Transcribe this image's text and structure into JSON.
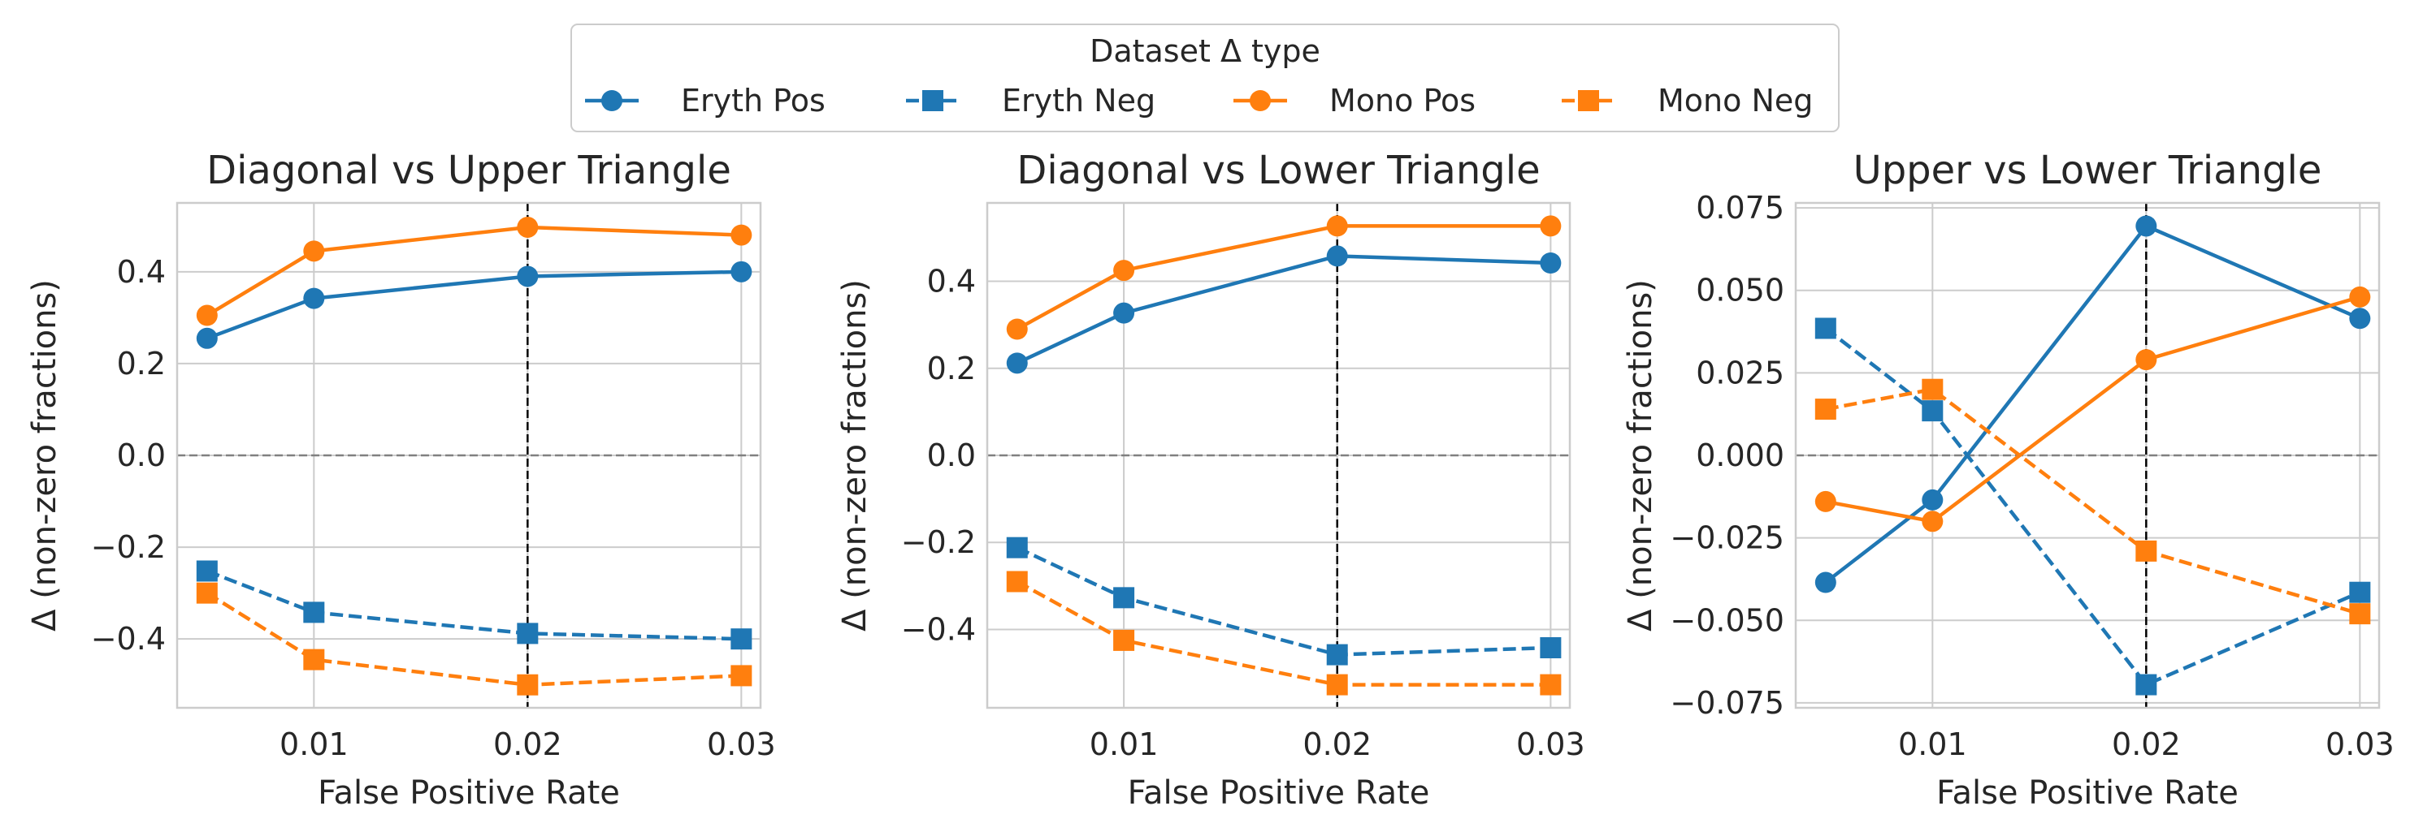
{
  "legend": {
    "title": "Dataset Δ type",
    "placement": "top-center"
  },
  "chart_data": [
    {
      "type": "line",
      "title": "Diagonal vs Upper Triangle",
      "xlabel": "False Positive Rate",
      "ylabel": "Δ (non-zero fractions)",
      "x": [
        0.005,
        0.01,
        0.02,
        0.03
      ],
      "xlim": [
        0.0036,
        0.0309
      ],
      "ylim": [
        -0.55,
        0.55
      ],
      "xticks": [
        0.01,
        0.02,
        0.03
      ],
      "xtick_labels": [
        "0.01",
        "0.02",
        "0.03"
      ],
      "yticks": [
        0.4,
        0.2,
        0.0,
        -0.2,
        -0.4
      ],
      "ytick_labels": [
        "0.4",
        "0.2",
        "0.0",
        "−0.2",
        "−0.4"
      ],
      "reference_vline": 0.02,
      "reference_hline": 0.0,
      "grid": true,
      "series": [
        {
          "name": "Eryth Pos",
          "values": [
            0.255,
            0.342,
            0.39,
            0.4
          ],
          "color": "#1f77b4",
          "marker": "circle",
          "linestyle": "solid"
        },
        {
          "name": "Eryth Neg",
          "values": [
            -0.252,
            -0.342,
            -0.388,
            -0.4
          ],
          "color": "#1f77b4",
          "marker": "square",
          "linestyle": "dashed"
        },
        {
          "name": "Mono Pos",
          "values": [
            0.305,
            0.445,
            0.497,
            0.48
          ],
          "color": "#ff7f0e",
          "marker": "circle",
          "linestyle": "solid"
        },
        {
          "name": "Mono Neg",
          "values": [
            -0.3,
            -0.445,
            -0.5,
            -0.48
          ],
          "color": "#ff7f0e",
          "marker": "square",
          "linestyle": "dashed"
        }
      ]
    },
    {
      "type": "line",
      "title": "Diagonal vs Lower Triangle",
      "xlabel": "False Positive Rate",
      "ylabel": "Δ (non-zero fractions)",
      "x": [
        0.005,
        0.01,
        0.02,
        0.03
      ],
      "xlim": [
        0.0036,
        0.0309
      ],
      "ylim": [
        -0.58,
        0.58
      ],
      "xticks": [
        0.01,
        0.02,
        0.03
      ],
      "xtick_labels": [
        "0.01",
        "0.02",
        "0.03"
      ],
      "yticks": [
        0.4,
        0.2,
        0.0,
        -0.2,
        -0.4
      ],
      "ytick_labels": [
        "0.4",
        "0.2",
        "0.0",
        "−0.2",
        "−0.4"
      ],
      "reference_vline": 0.02,
      "reference_hline": 0.0,
      "grid": true,
      "series": [
        {
          "name": "Eryth Pos",
          "values": [
            0.212,
            0.327,
            0.458,
            0.442
          ],
          "color": "#1f77b4",
          "marker": "circle",
          "linestyle": "solid"
        },
        {
          "name": "Eryth Neg",
          "values": [
            -0.212,
            -0.327,
            -0.458,
            -0.442
          ],
          "color": "#1f77b4",
          "marker": "square",
          "linestyle": "dashed"
        },
        {
          "name": "Mono Pos",
          "values": [
            0.29,
            0.425,
            0.527,
            0.527
          ],
          "color": "#ff7f0e",
          "marker": "circle",
          "linestyle": "solid"
        },
        {
          "name": "Mono Neg",
          "values": [
            -0.29,
            -0.425,
            -0.527,
            -0.527
          ],
          "color": "#ff7f0e",
          "marker": "square",
          "linestyle": "dashed"
        }
      ]
    },
    {
      "type": "line",
      "title": "Upper vs Lower Triangle",
      "xlabel": "False Positive Rate",
      "ylabel": "Δ (non-zero fractions)",
      "x": [
        0.005,
        0.01,
        0.02,
        0.03
      ],
      "xlim": [
        0.0036,
        0.0309
      ],
      "ylim": [
        -0.0765,
        0.0765
      ],
      "xticks": [
        0.01,
        0.02,
        0.03
      ],
      "xtick_labels": [
        "0.01",
        "0.02",
        "0.03"
      ],
      "yticks": [
        0.075,
        0.05,
        0.025,
        0.0,
        -0.025,
        -0.05,
        -0.075
      ],
      "ytick_labels": [
        "0.075",
        "0.050",
        "0.025",
        "0.000",
        "−0.025",
        "−0.050",
        "−0.075"
      ],
      "reference_vline": 0.02,
      "reference_hline": 0.0,
      "grid": true,
      "series": [
        {
          "name": "Eryth Pos",
          "values": [
            -0.0385,
            -0.0135,
            0.0695,
            0.0415
          ],
          "color": "#1f77b4",
          "marker": "circle",
          "linestyle": "solid"
        },
        {
          "name": "Eryth Neg",
          "values": [
            0.0385,
            0.0135,
            -0.0695,
            -0.0415
          ],
          "color": "#1f77b4",
          "marker": "square",
          "linestyle": "dashed"
        },
        {
          "name": "Mono Pos",
          "values": [
            -0.014,
            -0.02,
            0.029,
            0.048
          ],
          "color": "#ff7f0e",
          "marker": "circle",
          "linestyle": "solid"
        },
        {
          "name": "Mono Neg",
          "values": [
            0.014,
            0.02,
            -0.029,
            -0.048
          ],
          "color": "#ff7f0e",
          "marker": "square",
          "linestyle": "dashed"
        }
      ]
    }
  ]
}
